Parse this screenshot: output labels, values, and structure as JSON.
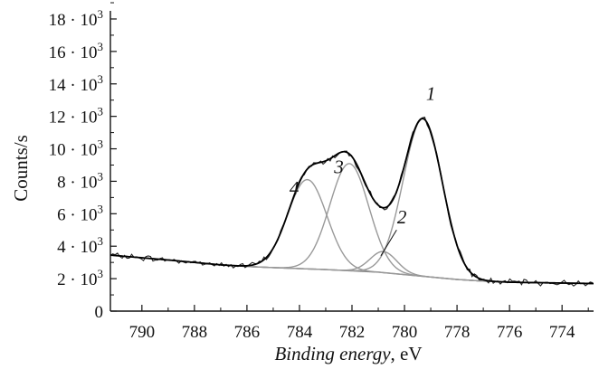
{
  "chart_data": {
    "type": "line",
    "title": "",
    "xlabel_italic": "Binding energy",
    "xlabel_rest": ", eV",
    "ylabel": "Counts/s",
    "xlim": [
      791.2,
      772.8
    ],
    "ylim": [
      0,
      18500
    ],
    "x_axis_reversed": true,
    "grid": false,
    "legend": "none",
    "x_ticks": [
      790,
      788,
      786,
      784,
      782,
      780,
      778,
      776,
      774
    ],
    "y_ticks": [
      {
        "value": 0,
        "mantissa": "0",
        "exp": ""
      },
      {
        "value": 2000,
        "mantissa": "2 · 10",
        "exp": "3"
      },
      {
        "value": 4000,
        "mantissa": "4 · 10",
        "exp": "3"
      },
      {
        "value": 6000,
        "mantissa": "6 · 10",
        "exp": "3"
      },
      {
        "value": 8000,
        "mantissa": "8 · 10",
        "exp": "3"
      },
      {
        "value": 10000,
        "mantissa": "10 · 10",
        "exp": "3"
      },
      {
        "value": 12000,
        "mantissa": "12 · 10",
        "exp": "3"
      },
      {
        "value": 14000,
        "mantissa": "14 · 10",
        "exp": "3"
      },
      {
        "value": 16000,
        "mantissa": "16 · 10",
        "exp": "3"
      },
      {
        "value": 18000,
        "mantissa": "18 · 10",
        "exp": "3"
      }
    ],
    "background": {
      "x": [
        791.2,
        789,
        787,
        786,
        785,
        784,
        783,
        782,
        781,
        780,
        779,
        778,
        777,
        776,
        774,
        772.8
      ],
      "y": [
        3450,
        3150,
        2850,
        2750,
        2680,
        2620,
        2560,
        2480,
        2400,
        2250,
        2100,
        1950,
        1850,
        1780,
        1730,
        1700
      ]
    },
    "peaks": [
      {
        "label": "1",
        "center": 779.3,
        "height": 9700,
        "fwhm": 1.75
      },
      {
        "label": "2",
        "center": 780.8,
        "height": 1300,
        "fwhm": 1.2
      },
      {
        "label": "3",
        "center": 782.1,
        "height": 6600,
        "fwhm": 1.75
      },
      {
        "label": "4",
        "center": 783.7,
        "height": 5500,
        "fwhm": 1.75
      }
    ],
    "peak_label_positions": [
      {
        "label": "1",
        "x": 779.0,
        "y": 13000
      },
      {
        "label": "2",
        "x": 780.1,
        "y": 5400
      },
      {
        "label": "3",
        "x": 782.5,
        "y": 8500
      },
      {
        "label": "4",
        "x": 784.2,
        "y": 7200
      }
    ],
    "colors": {
      "measured": "#222222",
      "fit": "#000000",
      "components": "#999999",
      "background": "#888888",
      "axes": "#111111"
    }
  }
}
